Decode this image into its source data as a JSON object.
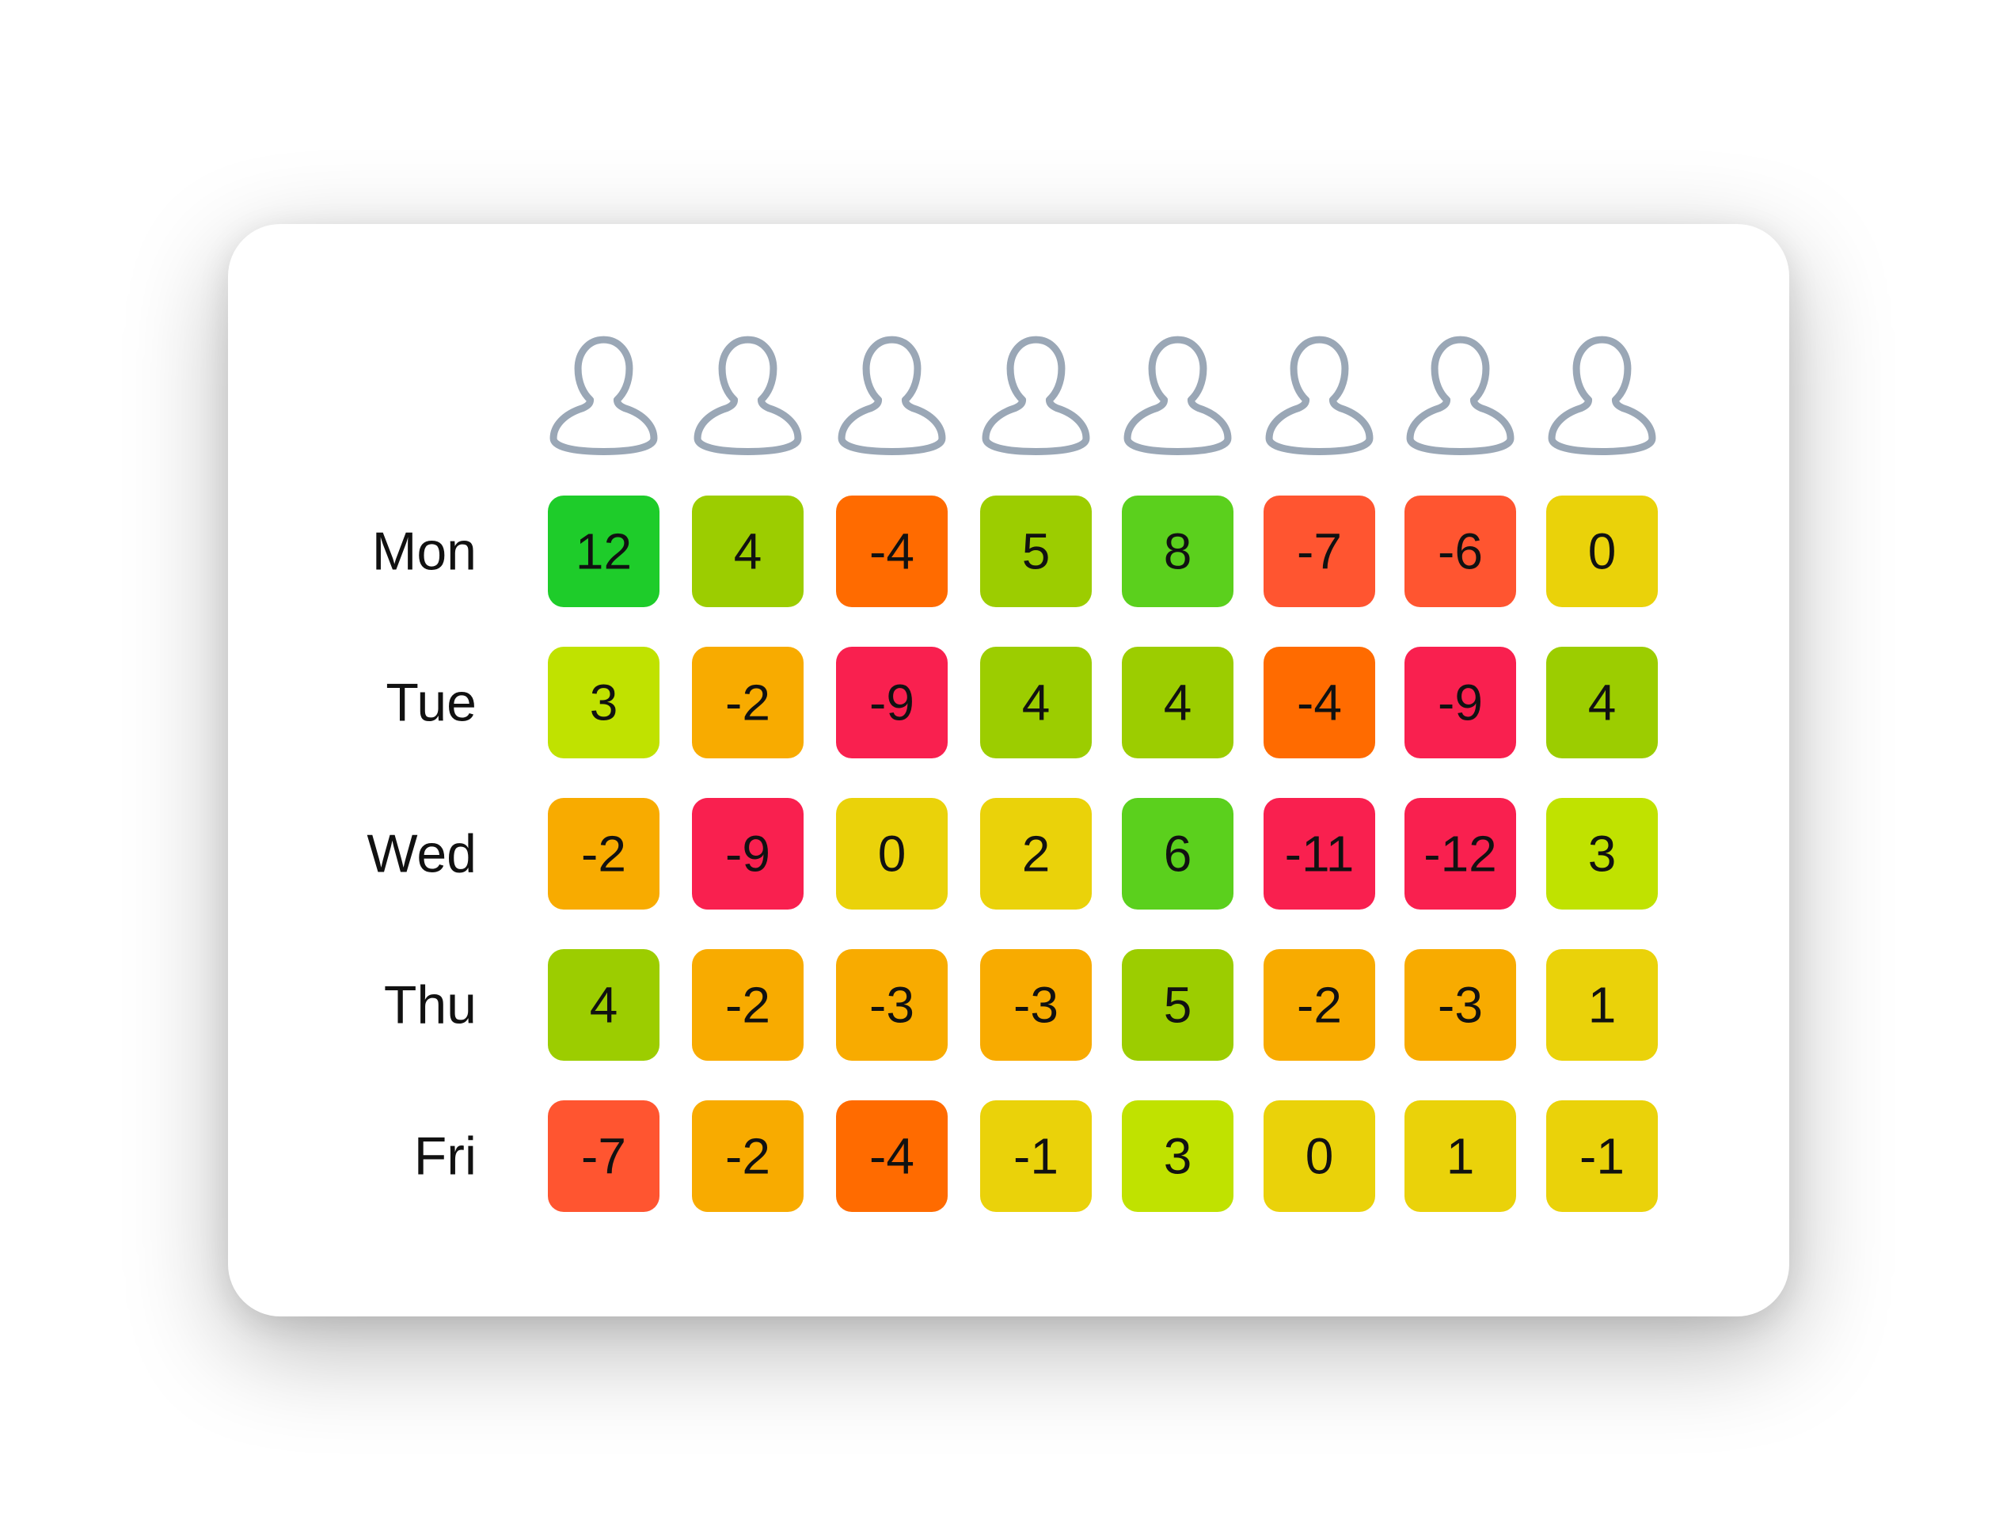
{
  "chart_data": {
    "type": "heatmap",
    "rows": [
      "Mon",
      "Tue",
      "Wed",
      "Thu",
      "Fri"
    ],
    "columns_icon": "user-icon",
    "column_count": 8,
    "values": [
      [
        12,
        4,
        -4,
        5,
        8,
        -7,
        -6,
        0
      ],
      [
        3,
        -2,
        -9,
        4,
        4,
        -4,
        -9,
        4
      ],
      [
        -2,
        -9,
        0,
        2,
        6,
        -11,
        -12,
        3
      ],
      [
        4,
        -2,
        -3,
        -3,
        5,
        -2,
        -3,
        1
      ],
      [
        -7,
        -2,
        -4,
        -1,
        3,
        0,
        1,
        -1
      ]
    ],
    "color_scale": [
      {
        "min": 10,
        "color": "#1ecc2a"
      },
      {
        "min": 6,
        "color": "#5bd01d"
      },
      {
        "min": 4,
        "color": "#9ccd00"
      },
      {
        "min": 3,
        "color": "#c0e200"
      },
      {
        "min": -1,
        "color": "#ead20a"
      },
      {
        "min": -3,
        "color": "#f8ab00"
      },
      {
        "min": -4,
        "color": "#ff6b00"
      },
      {
        "min": -7,
        "color": "#ff5530"
      },
      {
        "min": -100,
        "color": "#f9204f"
      }
    ],
    "icon_color": "#9aa7b6",
    "title": "",
    "xlabel": "",
    "ylabel": ""
  }
}
